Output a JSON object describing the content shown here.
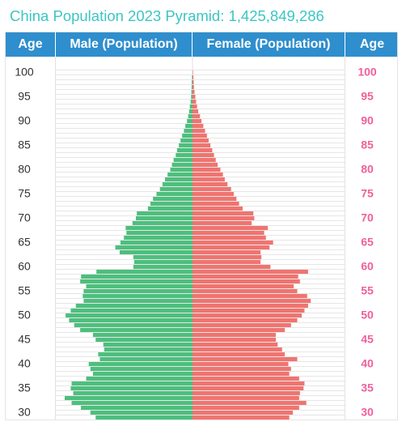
{
  "title": "China Population 2023 Pyramid: 1,425,849,286",
  "header": {
    "age_left": "Age",
    "male": "Male (Population)",
    "female": "Female (Population)",
    "age_right": "Age"
  },
  "colors": {
    "header_bg": "#2f8ecd",
    "title": "#3cc6c3",
    "male": "#4dbf7d",
    "female": "#f07470",
    "age_right": "#f0609a"
  },
  "chart_data": {
    "type": "bar",
    "orientation": "horizontal-pyramid",
    "value_unit": "relative bar length (share of widest bar)",
    "age_ticks": [
      "100",
      "95",
      "90",
      "85",
      "80",
      "75",
      "70",
      "65",
      "60",
      "55",
      "50",
      "45",
      "40",
      "35",
      "30"
    ],
    "series": [
      {
        "name": "Male (Population)",
        "ages": [
          100,
          99,
          98,
          97,
          96,
          95,
          94,
          93,
          92,
          91,
          90,
          89,
          88,
          87,
          86,
          85,
          84,
          83,
          82,
          81,
          80,
          79,
          78,
          77,
          76,
          75,
          74,
          73,
          72,
          71,
          70,
          69,
          68,
          67,
          66,
          65,
          64,
          63,
          62,
          61,
          60,
          59,
          58,
          57,
          56,
          55,
          54,
          53,
          52,
          51,
          50,
          49,
          48,
          47,
          46,
          45,
          44,
          43,
          42,
          41,
          40,
          39,
          38,
          37,
          36,
          35,
          34,
          33,
          32,
          31,
          30,
          29
        ],
        "values": [
          0,
          0.004,
          0.006,
          0.007,
          0.009,
          0.011,
          0.015,
          0.021,
          0.027,
          0.034,
          0.043,
          0.056,
          0.067,
          0.081,
          0.094,
          0.107,
          0.121,
          0.131,
          0.148,
          0.161,
          0.174,
          0.195,
          0.215,
          0.235,
          0.255,
          0.282,
          0.309,
          0.329,
          0.349,
          0.436,
          0.443,
          0.47,
          0.523,
          0.517,
          0.537,
          0.564,
          0.604,
          0.57,
          0.463,
          0.456,
          0.463,
          0.752,
          0.872,
          0.879,
          0.832,
          0.852,
          0.859,
          0.852,
          0.913,
          0.953,
          0.993,
          0.966,
          0.926,
          0.879,
          0.779,
          0.758,
          0.698,
          0.691,
          0.738,
          0.725,
          0.812,
          0.799,
          0.779,
          0.832,
          0.946,
          0.953,
          0.933,
          1.0,
          0.946,
          0.873,
          0.799,
          0.758
        ]
      },
      {
        "name": "Female (Population)",
        "ages": [
          100,
          99,
          98,
          97,
          96,
          95,
          94,
          93,
          92,
          91,
          90,
          89,
          88,
          87,
          86,
          85,
          84,
          83,
          82,
          81,
          80,
          79,
          78,
          77,
          76,
          75,
          74,
          73,
          72,
          71,
          70,
          69,
          68,
          67,
          66,
          65,
          64,
          63,
          62,
          61,
          60,
          59,
          58,
          57,
          56,
          55,
          54,
          53,
          52,
          51,
          50,
          49,
          48,
          47,
          46,
          45,
          44,
          43,
          42,
          41,
          40,
          39,
          38,
          37,
          36,
          35,
          34,
          33,
          32,
          31,
          30,
          29
        ],
        "values": [
          0.004,
          0.007,
          0.009,
          0.011,
          0.015,
          0.021,
          0.027,
          0.034,
          0.043,
          0.056,
          0.067,
          0.081,
          0.094,
          0.108,
          0.121,
          0.134,
          0.148,
          0.161,
          0.174,
          0.188,
          0.209,
          0.228,
          0.242,
          0.262,
          0.289,
          0.309,
          0.329,
          0.349,
          0.376,
          0.456,
          0.463,
          0.443,
          0.564,
          0.537,
          0.55,
          0.604,
          0.577,
          0.51,
          0.516,
          0.51,
          0.584,
          0.866,
          0.792,
          0.805,
          0.758,
          0.785,
          0.859,
          0.886,
          0.866,
          0.839,
          0.819,
          0.785,
          0.738,
          0.691,
          0.624,
          0.624,
          0.638,
          0.671,
          0.691,
          0.785,
          0.718,
          0.738,
          0.725,
          0.799,
          0.839,
          0.832,
          0.805,
          0.799,
          0.853,
          0.799,
          0.752,
          0.725
        ]
      }
    ],
    "xlabel": "",
    "ylabel": ""
  }
}
